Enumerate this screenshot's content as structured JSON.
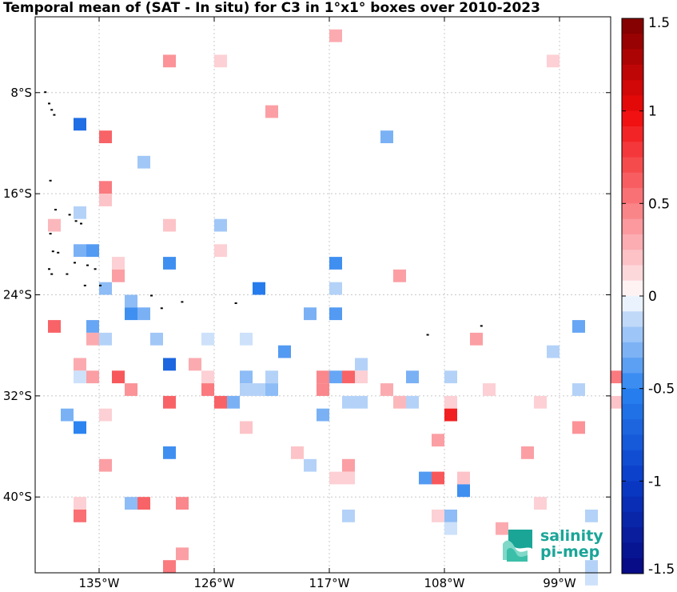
{
  "chart_data": {
    "type": "heatmap",
    "title": "Temporal mean of (SAT - In situ) for C3 in 1°x1° boxes over 2010-2023",
    "xlabel": "",
    "ylabel": "",
    "xlim": [
      -140,
      -95
    ],
    "ylim": [
      -46,
      -2
    ],
    "x_ticks": [
      {
        "value": -135,
        "label": "135°W"
      },
      {
        "value": -126,
        "label": "126°W"
      },
      {
        "value": -117,
        "label": "117°W"
      },
      {
        "value": -108,
        "label": "108°W"
      },
      {
        "value": -99,
        "label": "99°W"
      }
    ],
    "y_ticks": [
      {
        "value": -8,
        "label": "8°S"
      },
      {
        "value": -16,
        "label": "16°S"
      },
      {
        "value": -24,
        "label": "24°S"
      },
      {
        "value": -32,
        "label": "32°S"
      },
      {
        "value": -40,
        "label": "40°S"
      }
    ],
    "grid": true,
    "colorbar": {
      "min": -1.5,
      "max": 1.5,
      "ticks": [
        {
          "value": 1.5,
          "label": "1.5"
        },
        {
          "value": 1,
          "label": "1"
        },
        {
          "value": 0.5,
          "label": "0.5"
        },
        {
          "value": 0,
          "label": "0"
        },
        {
          "value": -0.5,
          "label": "-0.5"
        },
        {
          "value": -1,
          "label": "-1"
        },
        {
          "value": -1.5,
          "label": "-1.5"
        }
      ],
      "placement": "right"
    },
    "cells": [
      [
        -117,
        -3,
        0.3
      ],
      [
        -130,
        -5,
        0.4
      ],
      [
        -126,
        -5,
        0.15
      ],
      [
        -100,
        -5,
        0.15
      ],
      [
        -122,
        -9,
        0.35
      ],
      [
        -137,
        -10,
        -0.65
      ],
      [
        -135,
        -11,
        0.6
      ],
      [
        -113,
        -11,
        -0.3
      ],
      [
        -132,
        -13,
        -0.2
      ],
      [
        -135,
        -15,
        0.5
      ],
      [
        -135,
        -16,
        0.2
      ],
      [
        -139,
        -18,
        0.25
      ],
      [
        -137,
        -17,
        -0.15
      ],
      [
        -130,
        -18,
        0.2
      ],
      [
        -126,
        -18,
        -0.2
      ],
      [
        -126,
        -20,
        0.15
      ],
      [
        -137,
        -20,
        -0.3
      ],
      [
        -136,
        -20,
        -0.4
      ],
      [
        -134,
        -21,
        0.15
      ],
      [
        -130,
        -21,
        -0.45
      ],
      [
        -117,
        -21,
        -0.45
      ],
      [
        -134,
        -22,
        0.35
      ],
      [
        -112,
        -22,
        0.35
      ],
      [
        -135,
        -23,
        -0.25
      ],
      [
        -123,
        -23,
        -0.55
      ],
      [
        -117,
        -23,
        -0.15
      ],
      [
        -133,
        -24,
        -0.25
      ],
      [
        -133,
        -25,
        -0.45
      ],
      [
        -132,
        -25,
        -0.3
      ],
      [
        -119,
        -25,
        -0.3
      ],
      [
        -117,
        -25,
        -0.4
      ],
      [
        -139,
        -26,
        0.6
      ],
      [
        -136,
        -26,
        -0.35
      ],
      [
        -136,
        -27,
        0.3
      ],
      [
        -135,
        -27,
        -0.15
      ],
      [
        -131,
        -27,
        -0.2
      ],
      [
        -127,
        -27,
        -0.1
      ],
      [
        -124,
        -27,
        -0.1
      ],
      [
        -106,
        -27,
        0.35
      ],
      [
        -98,
        -26,
        -0.35
      ],
      [
        -121,
        -28,
        -0.4
      ],
      [
        -100,
        -28,
        -0.15
      ],
      [
        -137,
        -29,
        0.3
      ],
      [
        -130,
        -29,
        -0.7
      ],
      [
        -128,
        -29,
        0.3
      ],
      [
        -115,
        -29,
        -0.15
      ],
      [
        -137,
        -30,
        -0.1
      ],
      [
        -136,
        -30,
        0.35
      ],
      [
        -134,
        -30,
        0.65
      ],
      [
        -127,
        -30,
        0.15
      ],
      [
        -124,
        -30,
        -0.25
      ],
      [
        -122,
        -30,
        -0.15
      ],
      [
        -118,
        -30,
        0.45
      ],
      [
        -117,
        -30,
        -0.35
      ],
      [
        -116,
        -30,
        0.6
      ],
      [
        -115,
        -30,
        0.15
      ],
      [
        -111,
        -30,
        -0.3
      ],
      [
        -108,
        -30,
        -0.15
      ],
      [
        -95,
        -30,
        0.5
      ],
      [
        -133,
        -31,
        0.4
      ],
      [
        -127,
        -31,
        0.5
      ],
      [
        -124,
        -31,
        -0.15
      ],
      [
        -123,
        -31,
        -0.15
      ],
      [
        -122,
        -31,
        -0.25
      ],
      [
        -118,
        -31,
        0.45
      ],
      [
        -113,
        -31,
        0.3
      ],
      [
        -105,
        -31,
        0.15
      ],
      [
        -98,
        -31,
        -0.15
      ],
      [
        -130,
        -32,
        0.6
      ],
      [
        -126,
        -32,
        0.6
      ],
      [
        -125,
        -32,
        -0.3
      ],
      [
        -116,
        -32,
        -0.15
      ],
      [
        -115,
        -32,
        -0.15
      ],
      [
        -112,
        -32,
        0.25
      ],
      [
        -111,
        -32,
        -0.15
      ],
      [
        -108,
        -32,
        0.15
      ],
      [
        -101,
        -32,
        0.15
      ],
      [
        -95,
        -32,
        0.2
      ],
      [
        -138,
        -33,
        -0.3
      ],
      [
        -135,
        -33,
        0.15
      ],
      [
        -118,
        -33,
        -0.3
      ],
      [
        -108,
        -33,
        0.9
      ],
      [
        -137,
        -34,
        -0.5
      ],
      [
        -124,
        -34,
        0.2
      ],
      [
        -98,
        -34,
        0.4
      ],
      [
        -109,
        -35,
        0.35
      ],
      [
        -130,
        -36,
        -0.45
      ],
      [
        -120,
        -36,
        0.2
      ],
      [
        -102,
        -36,
        0.35
      ],
      [
        -119,
        -37,
        -0.15
      ],
      [
        -116,
        -37,
        0.35
      ],
      [
        -135,
        -37,
        0.35
      ],
      [
        -117,
        -38,
        0.15
      ],
      [
        -116,
        -38,
        0.15
      ],
      [
        -110,
        -38,
        -0.4
      ],
      [
        -109,
        -38,
        0.65
      ],
      [
        -107,
        -38,
        0.2
      ],
      [
        -107,
        -39,
        -0.45
      ],
      [
        -137,
        -40,
        0.15
      ],
      [
        -133,
        -40,
        -0.25
      ],
      [
        -132,
        -40,
        0.6
      ],
      [
        -129,
        -40,
        0.45
      ],
      [
        -101,
        -40,
        0.15
      ],
      [
        -137,
        -41,
        0.55
      ],
      [
        -116,
        -41,
        -0.15
      ],
      [
        -109,
        -41,
        0.15
      ],
      [
        -108,
        -41,
        -0.25
      ],
      [
        -97,
        -41,
        -0.15
      ],
      [
        -108,
        -42,
        -0.1
      ],
      [
        -104,
        -42,
        0.3
      ],
      [
        -129,
        -44,
        0.35
      ],
      [
        -130,
        -45,
        0.5
      ],
      [
        -97,
        -45,
        -0.15
      ],
      [
        -97,
        -46,
        -0.1
      ]
    ],
    "islands": [
      [
        -139.3,
        -7.9
      ],
      [
        -139.0,
        -8.8
      ],
      [
        -138.8,
        -9.3
      ],
      [
        -138.6,
        -9.7
      ],
      [
        -138.9,
        -14.9
      ],
      [
        -138.5,
        -17.2
      ],
      [
        -137.4,
        -17.6
      ],
      [
        -136.5,
        -18.3
      ],
      [
        -136.9,
        -18.1
      ],
      [
        -138.9,
        -19.1
      ],
      [
        -138.7,
        -20.5
      ],
      [
        -138.3,
        -20.6
      ],
      [
        -137.0,
        -21.4
      ],
      [
        -136.0,
        -21.6
      ],
      [
        -135.4,
        -21.9
      ],
      [
        -139.0,
        -21.9
      ],
      [
        -138.8,
        -22.3
      ],
      [
        -137.6,
        -22.3
      ],
      [
        -136.2,
        -23.2
      ],
      [
        -135.0,
        -23.2
      ],
      [
        -131.0,
        -24.0
      ],
      [
        -130.2,
        -25.0
      ],
      [
        -128.6,
        -24.5
      ],
      [
        -124.4,
        -24.6
      ],
      [
        -109.4,
        -27.1
      ],
      [
        -105.2,
        -26.4
      ]
    ]
  },
  "logo": {
    "line1": "salinity",
    "line2": "pi-mep"
  }
}
